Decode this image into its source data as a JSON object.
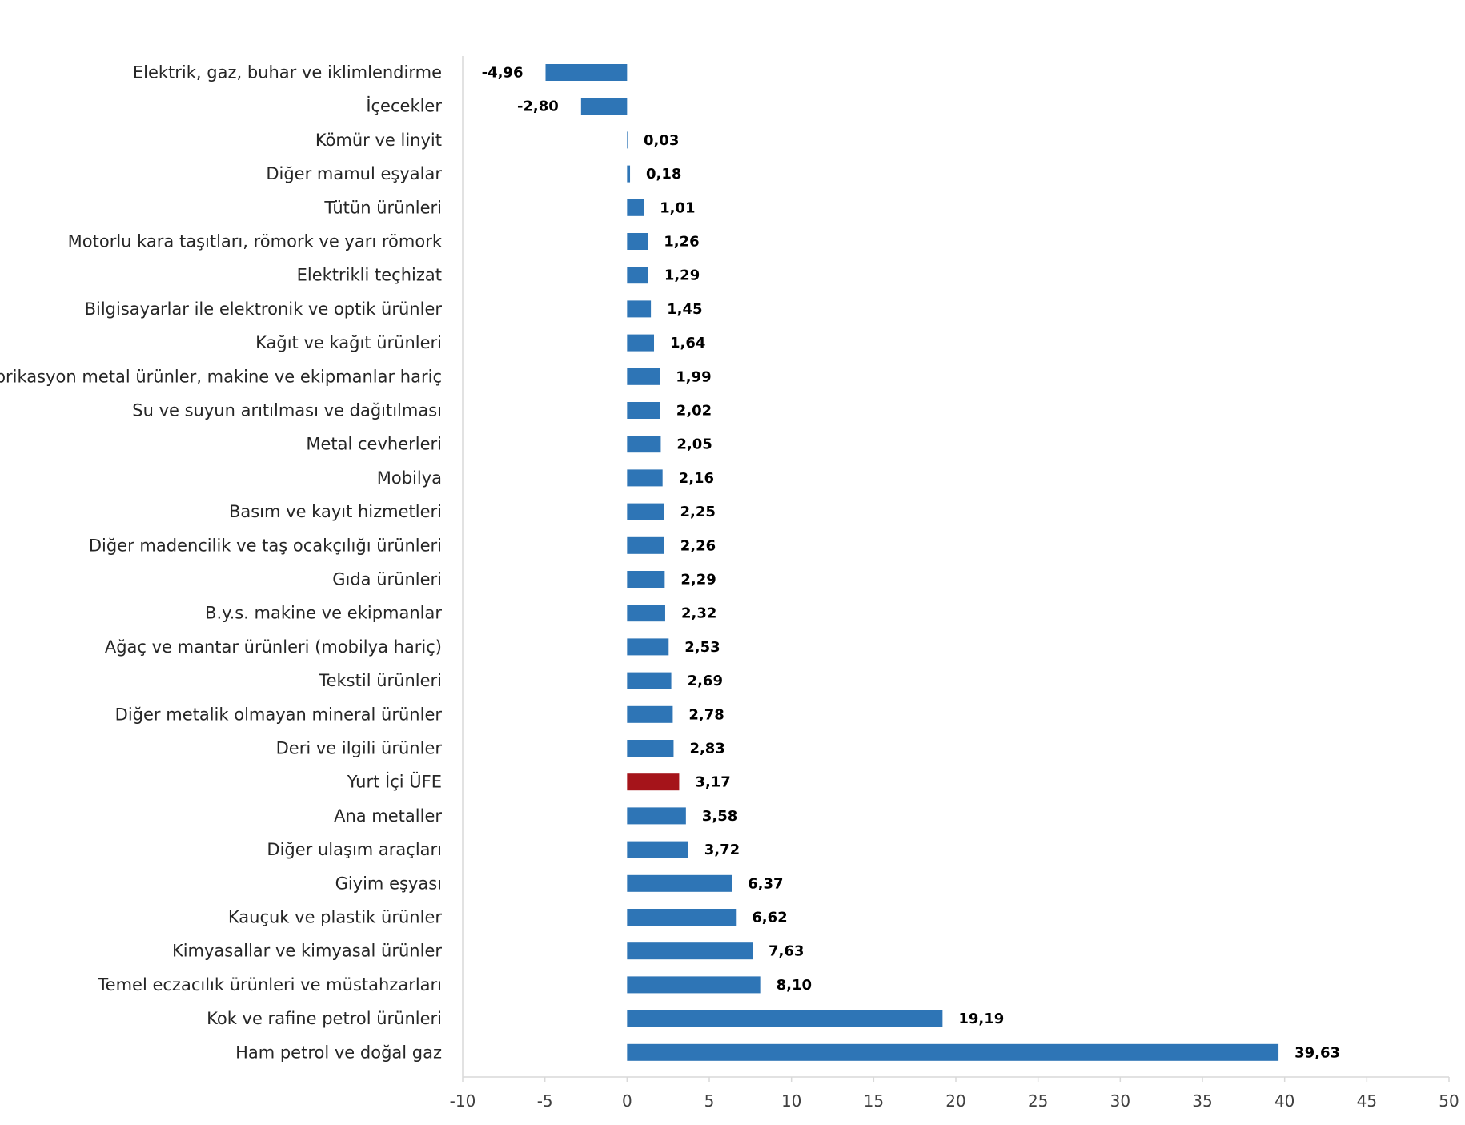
{
  "chart_data": {
    "type": "bar",
    "orientation": "horizontal",
    "title": "",
    "xlabel": "",
    "ylabel": "",
    "xlim": [
      -10,
      50
    ],
    "xticks": [
      -10,
      -5,
      0,
      5,
      10,
      15,
      20,
      25,
      30,
      35,
      40,
      45,
      50
    ],
    "grid": false,
    "legend": "none",
    "colors": {
      "bar": "#2E75B6",
      "highlight": "#A5141A",
      "axis": "#D9D9D9"
    },
    "highlight_category": "Yurt İçi ÜFE",
    "categories": [
      "Elektrik, gaz, buhar ve iklimlendirme",
      "İçecekler",
      "Kömür ve linyit",
      "Diğer mamul eşyalar",
      "Tütün ürünleri",
      "Motorlu kara taşıtları, römork ve yarı römork",
      "Elektrikli teçhizat",
      "Bilgisayarlar ile elektronik ve optik ürünler",
      "Kağıt ve kağıt ürünleri",
      "Fabrikasyon metal ürünler, makine ve ekipmanlar hariç",
      "Su ve suyun arıtılması ve dağıtılması",
      "Metal cevherleri",
      "Mobilya",
      "Basım ve kayıt hizmetleri",
      "Diğer madencilik ve taş ocakçılığı ürünleri",
      "Gıda ürünleri",
      "B.y.s. makine ve ekipmanlar",
      "Ağaç ve mantar ürünleri (mobilya hariç)",
      "Tekstil ürünleri",
      "Diğer metalik olmayan mineral ürünler",
      "Deri ve ilgili ürünler",
      "Yurt İçi ÜFE",
      "Ana metaller",
      "Diğer ulaşım araçları",
      "Giyim eşyası",
      "Kauçuk ve plastik ürünler",
      "Kimyasallar ve kimyasal ürünler",
      "Temel eczacılık ürünleri ve müstahzarları",
      "Kok ve rafine petrol ürünleri",
      "Ham petrol ve doğal gaz"
    ],
    "values": [
      -4.96,
      -2.8,
      0.03,
      0.18,
      1.01,
      1.26,
      1.29,
      1.45,
      1.64,
      1.99,
      2.02,
      2.05,
      2.16,
      2.25,
      2.26,
      2.29,
      2.32,
      2.53,
      2.69,
      2.78,
      2.83,
      3.17,
      3.58,
      3.72,
      6.37,
      6.62,
      7.63,
      8.1,
      19.19,
      39.63
    ],
    "value_labels": [
      "-4,96",
      "-2,80",
      "0,03",
      "0,18",
      "1,01",
      "1,26",
      "1,29",
      "1,45",
      "1,64",
      "1,99",
      "2,02",
      "2,05",
      "2,16",
      "2,25",
      "2,26",
      "2,29",
      "2,32",
      "2,53",
      "2,69",
      "2,78",
      "2,83",
      "3,17",
      "3,58",
      "3,72",
      "6,37",
      "6,62",
      "7,63",
      "8,10",
      "19,19",
      "39,63"
    ]
  }
}
